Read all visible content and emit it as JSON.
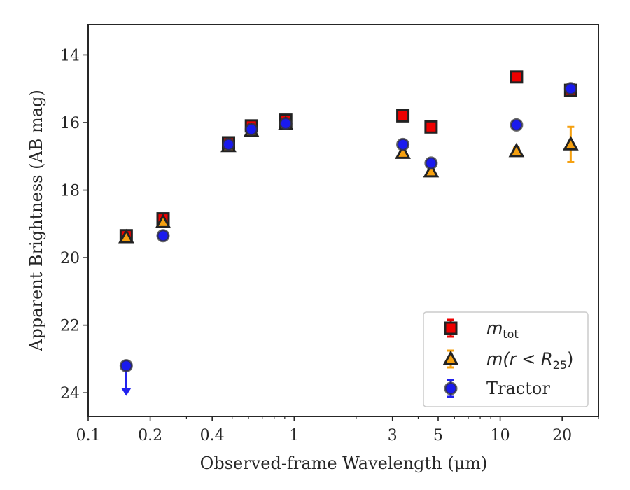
{
  "chart_data": {
    "type": "scatter",
    "title": "",
    "xlabel": "Observed-frame Wavelength (μm)",
    "ylabel": "Apparent Brightness (AB mag)",
    "xscale": "log",
    "xlim": [
      0.1,
      30
    ],
    "ylim": [
      24.7,
      13.1
    ],
    "y_inverted": true,
    "grid": false,
    "legend_position": "lower-right",
    "x_ticks": [
      {
        "value": 0.1,
        "label": "0.1"
      },
      {
        "value": 0.2,
        "label": "0.2"
      },
      {
        "value": 0.4,
        "label": "0.4"
      },
      {
        "value": 1,
        "label": "1"
      },
      {
        "value": 3,
        "label": "3"
      },
      {
        "value": 5,
        "label": "5"
      },
      {
        "value": 10,
        "label": "10"
      },
      {
        "value": 20,
        "label": "20"
      }
    ],
    "y_ticks": [
      {
        "value": 14,
        "label": "14"
      },
      {
        "value": 16,
        "label": "16"
      },
      {
        "value": 18,
        "label": "18"
      },
      {
        "value": 20,
        "label": "20"
      },
      {
        "value": 22,
        "label": "22"
      },
      {
        "value": 24,
        "label": "24"
      }
    ],
    "series": [
      {
        "key": "mtot",
        "legend_base": "m",
        "legend_sub": "tot",
        "marker": "square",
        "face_color": "#ee0000",
        "edge_color": "#222222",
        "error_color": "#ee0000",
        "points": [
          {
            "x": 0.153,
            "y": 19.35,
            "err": 0.08
          },
          {
            "x": 0.231,
            "y": 18.85,
            "err": 0.08
          },
          {
            "x": 0.48,
            "y": 16.6,
            "err": 0.08
          },
          {
            "x": 0.62,
            "y": 16.1,
            "err": 0.08
          },
          {
            "x": 0.91,
            "y": 15.93,
            "err": 0.08
          },
          {
            "x": 3.37,
            "y": 15.8,
            "err": 0.08
          },
          {
            "x": 4.62,
            "y": 16.13,
            "err": 0.08
          },
          {
            "x": 12.0,
            "y": 14.65,
            "err": 0.08
          },
          {
            "x": 22.0,
            "y": 15.05,
            "err": 0.1
          }
        ]
      },
      {
        "key": "mR25",
        "legend_base": "m(r < R",
        "legend_sub": "25",
        "legend_tail": ")",
        "marker": "triangle",
        "face_color": "#f5a010",
        "edge_color": "#222222",
        "error_color": "#f5a010",
        "points": [
          {
            "x": 0.153,
            "y": 19.4,
            "err": 0.05
          },
          {
            "x": 0.231,
            "y": 18.95,
            "err": 0.05
          },
          {
            "x": 0.48,
            "y": 16.7,
            "err": 0.05
          },
          {
            "x": 0.62,
            "y": 16.25,
            "err": 0.05
          },
          {
            "x": 0.91,
            "y": 16.05,
            "err": 0.05
          },
          {
            "x": 3.37,
            "y": 16.9,
            "err": 0.05
          },
          {
            "x": 4.62,
            "y": 17.45,
            "err": 0.05
          },
          {
            "x": 12.0,
            "y": 16.85,
            "err": 0.1
          },
          {
            "x": 22.0,
            "y": 16.65,
            "err": 0.52
          }
        ]
      },
      {
        "key": "tractor",
        "legend_label": "Tractor",
        "marker": "circle",
        "face_color": "#1a1aee",
        "edge_color": "#333333",
        "error_color": "#2222ee",
        "points": [
          {
            "x": 0.153,
            "y": 23.2,
            "upper_limit": true
          },
          {
            "x": 0.231,
            "y": 19.35,
            "err": 0.05
          },
          {
            "x": 0.48,
            "y": 16.65,
            "err": 0.05
          },
          {
            "x": 0.62,
            "y": 16.2,
            "err": 0.05
          },
          {
            "x": 0.91,
            "y": 16.03,
            "err": 0.05
          },
          {
            "x": 3.37,
            "y": 16.65,
            "err": 0.05
          },
          {
            "x": 4.62,
            "y": 17.2,
            "err": 0.05
          },
          {
            "x": 12.0,
            "y": 16.07,
            "err": 0.05
          },
          {
            "x": 22.0,
            "y": 15.0,
            "err": 0.05
          }
        ]
      }
    ]
  }
}
